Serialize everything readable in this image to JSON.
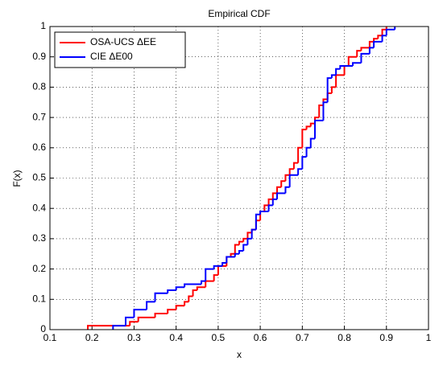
{
  "chart_data": {
    "type": "step",
    "title": "Empirical CDF",
    "x_label": "x",
    "y_label": "F(x)",
    "xlim": [
      0.1,
      1
    ],
    "ylim": [
      0,
      1
    ],
    "xticks": [
      0.1,
      0.2,
      0.3,
      0.4,
      0.5,
      0.6,
      0.7,
      0.8,
      0.9,
      1
    ],
    "yticks": [
      0,
      0.1,
      0.2,
      0.3,
      0.4,
      0.5,
      0.6,
      0.7,
      0.8,
      0.9,
      1
    ],
    "grid": true,
    "legend": "upper-left",
    "series": [
      {
        "name": "OSA-UCS ΔEE",
        "color": "#ff0000",
        "x": [
          0.19,
          0.29,
          0.31,
          0.35,
          0.38,
          0.4,
          0.42,
          0.43,
          0.44,
          0.45,
          0.47,
          0.49,
          0.5,
          0.52,
          0.53,
          0.54,
          0.55,
          0.56,
          0.57,
          0.58,
          0.59,
          0.6,
          0.61,
          0.62,
          0.63,
          0.64,
          0.65,
          0.66,
          0.67,
          0.68,
          0.69,
          0.7,
          0.71,
          0.72,
          0.73,
          0.74,
          0.75,
          0.76,
          0.77,
          0.78,
          0.8,
          0.81,
          0.83,
          0.84,
          0.86,
          0.87,
          0.88,
          0.89,
          0.9
        ],
        "values": [
          0.013,
          0.026,
          0.04,
          0.053,
          0.066,
          0.079,
          0.092,
          0.11,
          0.13,
          0.14,
          0.16,
          0.18,
          0.21,
          0.24,
          0.25,
          0.28,
          0.29,
          0.3,
          0.32,
          0.33,
          0.36,
          0.39,
          0.41,
          0.43,
          0.45,
          0.47,
          0.49,
          0.51,
          0.53,
          0.55,
          0.6,
          0.66,
          0.67,
          0.68,
          0.7,
          0.74,
          0.76,
          0.78,
          0.8,
          0.84,
          0.87,
          0.9,
          0.92,
          0.93,
          0.95,
          0.96,
          0.97,
          0.99,
          1.0
        ]
      },
      {
        "name": "CIE ΔE00",
        "color": "#0000ff",
        "x": [
          0.25,
          0.28,
          0.3,
          0.33,
          0.35,
          0.38,
          0.4,
          0.42,
          0.46,
          0.47,
          0.49,
          0.51,
          0.52,
          0.54,
          0.55,
          0.56,
          0.57,
          0.58,
          0.59,
          0.6,
          0.62,
          0.63,
          0.64,
          0.66,
          0.67,
          0.69,
          0.7,
          0.71,
          0.72,
          0.73,
          0.75,
          0.76,
          0.77,
          0.78,
          0.79,
          0.82,
          0.84,
          0.86,
          0.87,
          0.89,
          0.9,
          0.92
        ],
        "values": [
          0.013,
          0.04,
          0.066,
          0.092,
          0.12,
          0.13,
          0.14,
          0.15,
          0.16,
          0.2,
          0.21,
          0.22,
          0.24,
          0.25,
          0.26,
          0.28,
          0.3,
          0.33,
          0.38,
          0.39,
          0.41,
          0.43,
          0.45,
          0.47,
          0.51,
          0.53,
          0.57,
          0.6,
          0.63,
          0.69,
          0.75,
          0.83,
          0.84,
          0.86,
          0.87,
          0.88,
          0.91,
          0.93,
          0.95,
          0.97,
          0.99,
          1.0
        ]
      }
    ]
  }
}
